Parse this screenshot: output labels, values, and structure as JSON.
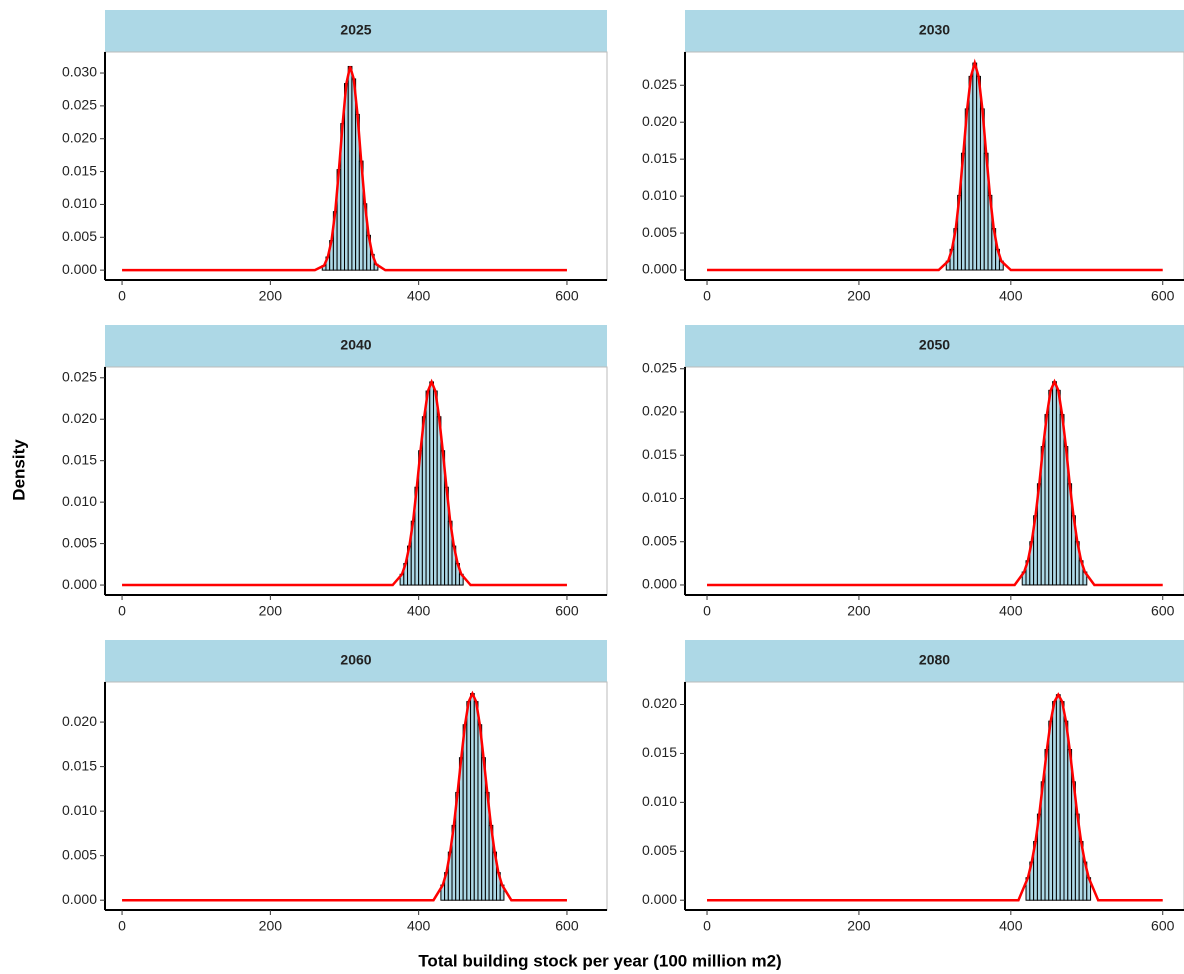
{
  "x_label": "Total building stock per year (100 million m2)",
  "y_label": "Density",
  "chart_data": [
    {
      "type": "histogram",
      "title": "2025",
      "strip_color": "#add8e6",
      "color": "#add8e6",
      "bins": [
        270,
        275,
        280,
        285,
        290,
        295,
        300,
        305,
        310,
        315,
        320,
        325,
        330,
        335,
        340,
        345
      ],
      "values": [
        0.0007,
        0.002,
        0.0045,
        0.0089,
        0.0153,
        0.0223,
        0.0284,
        0.031,
        0.0291,
        0.0237,
        0.0166,
        0.0101,
        0.0053,
        0.0024,
        0.0009
      ],
      "density": {
        "color": "#ff0000",
        "x": [
          0,
          260,
          272.5,
          277.5,
          282.5,
          287.5,
          292.5,
          297.5,
          302.5,
          307.5,
          312.5,
          317.5,
          322.5,
          327.5,
          332.5,
          337.5,
          342.5,
          355,
          600
        ],
        "values": [
          0,
          0,
          0.0007,
          0.002,
          0.0045,
          0.0089,
          0.0153,
          0.0223,
          0.0284,
          0.031,
          0.0291,
          0.0237,
          0.0166,
          0.0101,
          0.0053,
          0.0024,
          0.0009,
          0,
          0
        ]
      },
      "xlim": [
        -23,
        654
      ],
      "xticks": [
        0,
        200,
        400,
        600
      ],
      "ylim": [
        -0.0015,
        0.0332
      ],
      "yticks": [
        {
          "value": 0,
          "label": "0.000"
        },
        {
          "value": 0.005,
          "label": "0.005"
        },
        {
          "value": 0.01,
          "label": "0.010"
        },
        {
          "value": 0.015,
          "label": "0.015"
        },
        {
          "value": 0.02,
          "label": "0.020"
        },
        {
          "value": 0.025,
          "label": "0.025"
        },
        {
          "value": 0.03,
          "label": "0.030"
        }
      ]
    },
    {
      "type": "histogram",
      "title": "2030",
      "strip_color": "#add8e6",
      "color": "#add8e6",
      "bins": [
        315,
        320,
        325,
        330,
        335,
        340,
        345,
        350,
        355,
        360,
        365,
        370,
        375,
        380,
        385,
        390
      ],
      "values": [
        0.0012,
        0.0028,
        0.0056,
        0.0101,
        0.0158,
        0.0218,
        0.0262,
        0.028,
        0.0262,
        0.0218,
        0.0158,
        0.0101,
        0.0056,
        0.0028,
        0.0012
      ],
      "density": {
        "color": "#ff0000",
        "x": [
          0,
          305,
          317.5,
          322.5,
          327.5,
          332.5,
          337.5,
          342.5,
          347.5,
          352.5,
          357.5,
          362.5,
          367.5,
          372.5,
          377.5,
          382.5,
          387.5,
          400,
          600
        ],
        "values": [
          0,
          0,
          0.0012,
          0.0028,
          0.0056,
          0.0101,
          0.0158,
          0.0218,
          0.0262,
          0.028,
          0.0262,
          0.0218,
          0.0158,
          0.0101,
          0.0056,
          0.0028,
          0.0012,
          0,
          0
        ]
      },
      "xlim": [
        -29,
        628
      ],
      "xticks": [
        0,
        200,
        400,
        600
      ],
      "ylim": [
        -0.00135,
        0.0295
      ],
      "yticks": [
        {
          "value": 0,
          "label": "0.000"
        },
        {
          "value": 0.005,
          "label": "0.005"
        },
        {
          "value": 0.01,
          "label": "0.010"
        },
        {
          "value": 0.015,
          "label": "0.015"
        },
        {
          "value": 0.02,
          "label": "0.020"
        },
        {
          "value": 0.025,
          "label": "0.025"
        }
      ]
    },
    {
      "type": "histogram",
      "title": "2040",
      "strip_color": "#add8e6",
      "color": "#add8e6",
      "bins": [
        375,
        380,
        385,
        390,
        395,
        400,
        405,
        410,
        415,
        420,
        425,
        430,
        435,
        440,
        445,
        450,
        455,
        460
      ],
      "values": [
        0.0013,
        0.0026,
        0.0047,
        0.0077,
        0.0118,
        0.0162,
        0.0203,
        0.0234,
        0.0245,
        0.0234,
        0.0203,
        0.0162,
        0.0118,
        0.0077,
        0.0047,
        0.0026,
        0.0013
      ],
      "density": {
        "color": "#ff0000",
        "x": [
          0,
          365,
          377.5,
          382.5,
          387.5,
          392.5,
          397.5,
          402.5,
          407.5,
          412.5,
          417.5,
          422.5,
          427.5,
          432.5,
          437.5,
          442.5,
          447.5,
          452.5,
          457.5,
          470,
          600
        ],
        "values": [
          0,
          0,
          0.0013,
          0.0026,
          0.0047,
          0.0077,
          0.0118,
          0.0162,
          0.0203,
          0.0234,
          0.0245,
          0.0234,
          0.0203,
          0.0162,
          0.0118,
          0.0077,
          0.0047,
          0.0026,
          0.0013,
          0,
          0
        ]
      },
      "xlim": [
        -23,
        654
      ],
      "xticks": [
        0,
        200,
        400,
        600
      ],
      "ylim": [
        -0.0012,
        0.0263
      ],
      "yticks": [
        {
          "value": 0,
          "label": "0.000"
        },
        {
          "value": 0.005,
          "label": "0.005"
        },
        {
          "value": 0.01,
          "label": "0.010"
        },
        {
          "value": 0.015,
          "label": "0.015"
        },
        {
          "value": 0.02,
          "label": "0.020"
        },
        {
          "value": 0.025,
          "label": "0.025"
        }
      ]
    },
    {
      "type": "histogram",
      "title": "2050",
      "strip_color": "#add8e6",
      "color": "#add8e6",
      "bins": [
        415,
        420,
        425,
        430,
        435,
        440,
        445,
        450,
        455,
        460,
        465,
        470,
        475,
        480,
        485,
        490,
        495,
        500
      ],
      "values": [
        0.0015,
        0.0028,
        0.005,
        0.008,
        0.0117,
        0.016,
        0.0197,
        0.0225,
        0.0235,
        0.0225,
        0.0197,
        0.016,
        0.0117,
        0.008,
        0.005,
        0.0028,
        0.0015
      ],
      "density": {
        "color": "#ff0000",
        "x": [
          0,
          405,
          417.5,
          422.5,
          427.5,
          432.5,
          437.5,
          442.5,
          447.5,
          452.5,
          457.5,
          462.5,
          467.5,
          472.5,
          477.5,
          482.5,
          487.5,
          492.5,
          497.5,
          510,
          600
        ],
        "values": [
          0,
          0,
          0.0015,
          0.0028,
          0.005,
          0.008,
          0.0117,
          0.016,
          0.0197,
          0.0225,
          0.0235,
          0.0225,
          0.0197,
          0.016,
          0.0117,
          0.008,
          0.005,
          0.0028,
          0.0015,
          0,
          0
        ]
      },
      "xlim": [
        -29,
        628
      ],
      "xticks": [
        0,
        200,
        400,
        600
      ],
      "ylim": [
        -0.00116,
        0.0252
      ],
      "yticks": [
        {
          "value": 0,
          "label": "0.000"
        },
        {
          "value": 0.005,
          "label": "0.005"
        },
        {
          "value": 0.01,
          "label": "0.010"
        },
        {
          "value": 0.015,
          "label": "0.015"
        },
        {
          "value": 0.02,
          "label": "0.020"
        },
        {
          "value": 0.025,
          "label": "0.025"
        }
      ]
    },
    {
      "type": "histogram",
      "title": "2060",
      "strip_color": "#add8e6",
      "color": "#add8e6",
      "bins": [
        430,
        435,
        440,
        445,
        450,
        455,
        460,
        465,
        470,
        475,
        480,
        485,
        490,
        495,
        500,
        505,
        510,
        515
      ],
      "values": [
        0.0017,
        0.0031,
        0.0054,
        0.0084,
        0.0121,
        0.016,
        0.0197,
        0.0223,
        0.0232,
        0.0223,
        0.0197,
        0.016,
        0.0121,
        0.0084,
        0.0054,
        0.0031,
        0.0017
      ],
      "density": {
        "color": "#ff0000",
        "x": [
          0,
          420,
          432.5,
          437.5,
          442.5,
          447.5,
          452.5,
          457.5,
          462.5,
          467.5,
          472.5,
          477.5,
          482.5,
          487.5,
          492.5,
          497.5,
          502.5,
          507.5,
          512.5,
          525,
          600
        ],
        "values": [
          0,
          0,
          0.0017,
          0.0031,
          0.0054,
          0.0084,
          0.0121,
          0.016,
          0.0197,
          0.0223,
          0.0232,
          0.0223,
          0.0197,
          0.016,
          0.0121,
          0.0084,
          0.0054,
          0.0031,
          0.0017,
          0,
          0
        ]
      },
      "xlim": [
        -23,
        654
      ],
      "xticks": [
        0,
        200,
        400,
        600
      ],
      "ylim": [
        -0.0011,
        0.0245
      ],
      "yticks": [
        {
          "value": 0,
          "label": "0.000"
        },
        {
          "value": 0.005,
          "label": "0.005"
        },
        {
          "value": 0.01,
          "label": "0.010"
        },
        {
          "value": 0.015,
          "label": "0.015"
        },
        {
          "value": 0.02,
          "label": "0.020"
        }
      ]
    },
    {
      "type": "histogram",
      "title": "2080",
      "strip_color": "#add8e6",
      "color": "#add8e6",
      "bins": [
        420,
        425,
        430,
        435,
        440,
        445,
        450,
        455,
        460,
        465,
        470,
        475,
        480,
        485,
        490,
        495,
        500,
        505
      ],
      "values": [
        0.0023,
        0.0039,
        0.006,
        0.0088,
        0.0121,
        0.0154,
        0.0183,
        0.0203,
        0.021,
        0.0203,
        0.0183,
        0.0154,
        0.0121,
        0.0088,
        0.006,
        0.0039,
        0.0023
      ],
      "density": {
        "color": "#ff0000",
        "x": [
          0,
          410,
          422.5,
          427.5,
          432.5,
          437.5,
          442.5,
          447.5,
          452.5,
          457.5,
          462.5,
          467.5,
          472.5,
          477.5,
          482.5,
          487.5,
          492.5,
          497.5,
          502.5,
          515,
          600
        ],
        "values": [
          0,
          0,
          0.0023,
          0.0039,
          0.006,
          0.0088,
          0.0121,
          0.0154,
          0.0183,
          0.0203,
          0.021,
          0.0203,
          0.0183,
          0.0154,
          0.0121,
          0.0088,
          0.006,
          0.0039,
          0.0023,
          0,
          0
        ]
      },
      "xlim": [
        -29,
        628
      ],
      "xticks": [
        0,
        200,
        400,
        600
      ],
      "ylim": [
        -0.001,
        0.0223
      ],
      "yticks": [
        {
          "value": 0,
          "label": "0.000"
        },
        {
          "value": 0.005,
          "label": "0.005"
        },
        {
          "value": 0.01,
          "label": "0.010"
        },
        {
          "value": 0.015,
          "label": "0.015"
        },
        {
          "value": 0.02,
          "label": "0.020"
        }
      ]
    }
  ]
}
